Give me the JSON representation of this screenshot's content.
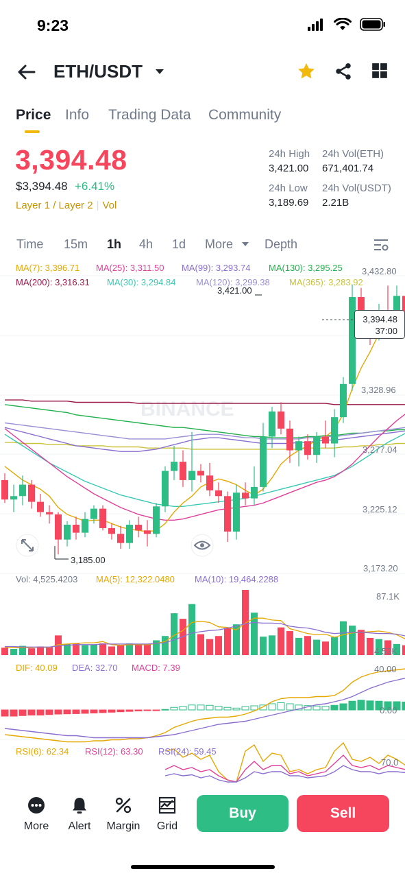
{
  "status_bar": {
    "time": "9:23"
  },
  "header": {
    "pair": "ETH/USDT",
    "favorite_color": "#f0b90b"
  },
  "tabs": [
    {
      "label": "Price",
      "active": true
    },
    {
      "label": "Info",
      "active": false
    },
    {
      "label": "Trading Data",
      "active": false
    },
    {
      "label": "Community",
      "active": false
    }
  ],
  "ticker": {
    "last_price": "3,394.48",
    "usd_price": "$3,394.48",
    "change_pct": "+6.41%",
    "tag1": "Layer 1 / Layer 2",
    "tag2": "Vol",
    "high_label": "24h High",
    "high_value": "3,421.00",
    "vol_eth_label": "24h Vol(ETH)",
    "vol_eth_value": "671,401.74",
    "low_label": "24h Low",
    "low_value": "3,189.69",
    "vol_usdt_label": "24h Vol(USDT)",
    "vol_usdt_value": "2.21B"
  },
  "intervals": {
    "time": "Time",
    "m15": "15m",
    "h1": "1h",
    "h4": "4h",
    "d1": "1d",
    "more": "More",
    "depth": "Depth",
    "active": "1h"
  },
  "moving_averages": [
    {
      "label": "MA(7): 3,396.71",
      "color": "#e6a700"
    },
    {
      "label": "MA(25): 3,311.50",
      "color": "#e0409b"
    },
    {
      "label": "MA(99): 3,293.74",
      "color": "#8a6fd0"
    },
    {
      "label": "MA(130): 3,295.25",
      "color": "#22b14c"
    },
    {
      "label": "MA(200): 3,316.31",
      "color": "#9b1747"
    },
    {
      "label": "MA(30): 3,294.84",
      "color": "#39c9b4"
    },
    {
      "label": "MA(120): 3,299.38",
      "color": "#9b8fd6"
    },
    {
      "label": "MA(365): 3,283.92",
      "color": "#c9c23a"
    }
  ],
  "price_axis": [
    "3,432.80",
    "3,328.96",
    "3,277.04",
    "3,225.12",
    "3,173.20"
  ],
  "current_price_tag": {
    "price": "3,394.48",
    "countdown": "37:00"
  },
  "annotations": {
    "high": "3,421.00",
    "low": "3,185.00"
  },
  "watermark": "BINANCE",
  "volume": {
    "vol_label": "Vol: 4,525.4203",
    "ma5_label": "MA(5): 12,322.0480",
    "ma10_label": "MA(10): 19,464.2288",
    "axis_top": "87.1K",
    "axis_bottom": "4.53K"
  },
  "macd": {
    "dif": "DIF: 40.09",
    "dea": "DEA: 32.70",
    "macd": "MACD: 7.39",
    "axis_top": "40.00",
    "axis_mid": "0.00"
  },
  "rsi": {
    "rsi6": "RSI(6): 62.34",
    "rsi12": "RSI(12): 63.30",
    "rsi24": "RSI(24): 59.45",
    "axis_top": "70.0"
  },
  "bottom_nav": {
    "more": "More",
    "alert": "Alert",
    "margin": "Margin",
    "grid": "Grid",
    "buy": "Buy",
    "sell": "Sell"
  },
  "colors": {
    "up": "#2ebd85",
    "down": "#f6465d",
    "accent": "#f0b90b"
  },
  "chart_data": {
    "type": "candlestick",
    "interval": "1h",
    "ylim": [
      3173.2,
      3432.8
    ],
    "candles": [
      {
        "o": 3250,
        "h": 3256,
        "l": 3230,
        "c": 3233
      },
      {
        "o": 3233,
        "h": 3246,
        "l": 3222,
        "c": 3236
      },
      {
        "o": 3236,
        "h": 3254,
        "l": 3228,
        "c": 3246
      },
      {
        "o": 3246,
        "h": 3250,
        "l": 3225,
        "c": 3231
      },
      {
        "o": 3231,
        "h": 3238,
        "l": 3218,
        "c": 3222
      },
      {
        "o": 3222,
        "h": 3228,
        "l": 3212,
        "c": 3220
      },
      {
        "o": 3220,
        "h": 3222,
        "l": 3185,
        "c": 3198
      },
      {
        "o": 3198,
        "h": 3214,
        "l": 3192,
        "c": 3211
      },
      {
        "o": 3211,
        "h": 3218,
        "l": 3198,
        "c": 3204
      },
      {
        "o": 3204,
        "h": 3222,
        "l": 3200,
        "c": 3216
      },
      {
        "o": 3216,
        "h": 3228,
        "l": 3212,
        "c": 3225
      },
      {
        "o": 3225,
        "h": 3228,
        "l": 3206,
        "c": 3208
      },
      {
        "o": 3208,
        "h": 3212,
        "l": 3198,
        "c": 3203
      },
      {
        "o": 3203,
        "h": 3210,
        "l": 3190,
        "c": 3195
      },
      {
        "o": 3195,
        "h": 3215,
        "l": 3190,
        "c": 3211
      },
      {
        "o": 3211,
        "h": 3218,
        "l": 3200,
        "c": 3206
      },
      {
        "o": 3206,
        "h": 3215,
        "l": 3192,
        "c": 3203
      },
      {
        "o": 3203,
        "h": 3230,
        "l": 3200,
        "c": 3227
      },
      {
        "o": 3227,
        "h": 3262,
        "l": 3222,
        "c": 3258
      },
      {
        "o": 3258,
        "h": 3280,
        "l": 3250,
        "c": 3266
      },
      {
        "o": 3266,
        "h": 3276,
        "l": 3244,
        "c": 3250
      },
      {
        "o": 3250,
        "h": 3292,
        "l": 3240,
        "c": 3258
      },
      {
        "o": 3258,
        "h": 3264,
        "l": 3248,
        "c": 3254
      },
      {
        "o": 3254,
        "h": 3265,
        "l": 3236,
        "c": 3241
      },
      {
        "o": 3241,
        "h": 3248,
        "l": 3230,
        "c": 3236
      },
      {
        "o": 3236,
        "h": 3240,
        "l": 3196,
        "c": 3205
      },
      {
        "o": 3205,
        "h": 3246,
        "l": 3198,
        "c": 3239
      },
      {
        "o": 3239,
        "h": 3248,
        "l": 3228,
        "c": 3234
      },
      {
        "o": 3234,
        "h": 3262,
        "l": 3228,
        "c": 3244
      },
      {
        "o": 3244,
        "h": 3300,
        "l": 3240,
        "c": 3288
      },
      {
        "o": 3288,
        "h": 3314,
        "l": 3278,
        "c": 3310
      },
      {
        "o": 3310,
        "h": 3318,
        "l": 3290,
        "c": 3295
      },
      {
        "o": 3295,
        "h": 3302,
        "l": 3265,
        "c": 3276
      },
      {
        "o": 3276,
        "h": 3288,
        "l": 3262,
        "c": 3284
      },
      {
        "o": 3284,
        "h": 3290,
        "l": 3268,
        "c": 3272
      },
      {
        "o": 3272,
        "h": 3292,
        "l": 3265,
        "c": 3288
      },
      {
        "o": 3288,
        "h": 3302,
        "l": 3278,
        "c": 3282
      },
      {
        "o": 3282,
        "h": 3312,
        "l": 3270,
        "c": 3305
      },
      {
        "o": 3305,
        "h": 3340,
        "l": 3300,
        "c": 3334
      },
      {
        "o": 3334,
        "h": 3421,
        "l": 3328,
        "c": 3410
      },
      {
        "o": 3410,
        "h": 3418,
        "l": 3382,
        "c": 3385
      },
      {
        "o": 3385,
        "h": 3392,
        "l": 3368,
        "c": 3378
      },
      {
        "o": 3378,
        "h": 3404,
        "l": 3372,
        "c": 3398
      },
      {
        "o": 3398,
        "h": 3420,
        "l": 3380,
        "c": 3390
      },
      {
        "o": 3390,
        "h": 3420,
        "l": 3386,
        "c": 3411
      },
      {
        "o": 3411,
        "h": 3414,
        "l": 3388,
        "c": 3394
      },
      {
        "o": 3394,
        "h": 3414,
        "l": 3380,
        "c": 3399
      },
      {
        "o": 3399,
        "h": 3412,
        "l": 3388,
        "c": 3394
      }
    ],
    "ma7": [
      3262,
      3256,
      3250,
      3246,
      3242,
      3236,
      3226,
      3220,
      3217,
      3214,
      3215,
      3215,
      3212,
      3209,
      3207,
      3206,
      3205,
      3206,
      3212,
      3222,
      3230,
      3236,
      3244,
      3248,
      3251,
      3249,
      3246,
      3241,
      3237,
      3242,
      3252,
      3264,
      3271,
      3276,
      3280,
      3285,
      3288,
      3294,
      3308,
      3330,
      3348,
      3362,
      3378,
      3386,
      3392,
      3396,
      3397,
      3396
    ],
    "ma25": [
      3295,
      3289,
      3283,
      3277,
      3271,
      3265,
      3259,
      3253,
      3248,
      3243,
      3238,
      3234,
      3230,
      3226,
      3223,
      3220,
      3218,
      3216,
      3215,
      3215,
      3216,
      3218,
      3220,
      3222,
      3224,
      3225,
      3226,
      3227,
      3228,
      3230,
      3233,
      3236,
      3239,
      3242,
      3245,
      3248,
      3250,
      3253,
      3258,
      3264,
      3272,
      3280,
      3288,
      3295,
      3302,
      3308,
      3311,
      3312
    ],
    "ma30": [
      3290,
      3285,
      3280,
      3275,
      3270,
      3265,
      3261,
      3257,
      3253,
      3249,
      3246,
      3243,
      3240,
      3237,
      3235,
      3233,
      3231,
      3229,
      3228,
      3227,
      3227,
      3228,
      3229,
      3230,
      3231,
      3232,
      3233,
      3234,
      3236,
      3238,
      3240,
      3242,
      3244,
      3246,
      3248,
      3250,
      3252,
      3254,
      3258,
      3262,
      3267,
      3272,
      3278,
      3283,
      3287,
      3291,
      3294,
      3295
    ],
    "ma99": [
      3296,
      3294,
      3292,
      3290,
      3288,
      3286,
      3284,
      3282,
      3280,
      3279,
      3278,
      3277,
      3276,
      3275,
      3275,
      3275,
      3276,
      3277,
      3279,
      3281,
      3283,
      3285,
      3286,
      3287,
      3287,
      3286,
      3285,
      3284,
      3283,
      3282,
      3282,
      3282,
      3282,
      3283,
      3283,
      3284,
      3285,
      3285,
      3286,
      3287,
      3288,
      3289,
      3290,
      3291,
      3292,
      3293,
      3293,
      3294
    ],
    "ma120": [
      3300,
      3299,
      3298,
      3297,
      3296,
      3295,
      3294,
      3293,
      3292,
      3291,
      3290,
      3289,
      3288,
      3287,
      3286,
      3286,
      3286,
      3286,
      3286,
      3287,
      3288,
      3289,
      3290,
      3290,
      3290,
      3289,
      3288,
      3287,
      3287,
      3286,
      3286,
      3286,
      3286,
      3286,
      3287,
      3287,
      3288,
      3288,
      3289,
      3290,
      3291,
      3292,
      3293,
      3294,
      3295,
      3296,
      3297,
      3298
    ],
    "ma130": [
      3316,
      3315,
      3314,
      3313,
      3312,
      3311,
      3310,
      3309,
      3307,
      3306,
      3305,
      3304,
      3303,
      3302,
      3301,
      3300,
      3299,
      3298,
      3297,
      3296,
      3296,
      3295,
      3294,
      3293,
      3292,
      3291,
      3290,
      3289,
      3288,
      3288,
      3287,
      3287,
      3287,
      3287,
      3288,
      3288,
      3289,
      3289,
      3290,
      3291,
      3291,
      3292,
      3293,
      3293,
      3294,
      3294,
      3295,
      3295
    ],
    "ma200": [
      3320,
      3320,
      3320,
      3319,
      3319,
      3319,
      3319,
      3319,
      3318,
      3318,
      3318,
      3318,
      3318,
      3318,
      3318,
      3317,
      3317,
      3317,
      3317,
      3317,
      3317,
      3317,
      3317,
      3317,
      3317,
      3317,
      3317,
      3317,
      3317,
      3317,
      3317,
      3317,
      3317,
      3317,
      3317,
      3317,
      3317,
      3316,
      3316,
      3316,
      3316,
      3316,
      3316,
      3316,
      3316,
      3316,
      3316,
      3316
    ],
    "ma365": [
      3283,
      3283,
      3282,
      3282,
      3282,
      3281,
      3281,
      3281,
      3280,
      3280,
      3280,
      3280,
      3279,
      3279,
      3279,
      3279,
      3278,
      3278,
      3278,
      3278,
      3278,
      3277,
      3277,
      3277,
      3277,
      3277,
      3277,
      3277,
      3277,
      3277,
      3277,
      3277,
      3277,
      3277,
      3278,
      3278,
      3278,
      3278,
      3279,
      3279,
      3280,
      3280,
      3281,
      3281,
      3282,
      3282,
      3283,
      3284
    ],
    "volume": [
      1.2,
      1.0,
      1.5,
      1.1,
      1.4,
      1.3,
      3.2,
      1.8,
      1.9,
      1.6,
      1.7,
      1.9,
      1.4,
      1.6,
      1.9,
      1.7,
      1.8,
      2.4,
      3.1,
      6.8,
      5.9,
      8.3,
      3.4,
      2.6,
      3.1,
      4.4,
      5.0,
      10.6,
      6.9,
      3.0,
      3.2,
      4.5,
      3.9,
      2.8,
      3.1,
      2.5,
      2.2,
      2.9,
      5.5,
      4.8,
      4.1,
      2.8,
      2.6,
      2.4,
      1.8,
      1.6,
      1.2,
      0.6
    ],
    "vol_ma5": [
      1.3,
      1.2,
      1.2,
      1.2,
      1.3,
      1.2,
      1.7,
      1.8,
      1.9,
      2.0,
      2.0,
      2.2,
      1.7,
      1.6,
      1.7,
      1.7,
      1.7,
      1.9,
      2.2,
      3.2,
      4.0,
      5.3,
      5.5,
      5.3,
      4.6,
      4.5,
      4.1,
      5.2,
      6.0,
      6.0,
      5.7,
      5.6,
      4.3,
      3.9,
      3.5,
      3.3,
      3.4,
      2.9,
      3.3,
      3.6,
      3.7,
      3.8,
      3.9,
      3.7,
      3.3,
      2.6,
      2.1,
      1.7
    ],
    "vol_ma10": [
      1.4,
      1.4,
      1.3,
      1.3,
      1.3,
      1.3,
      1.5,
      1.6,
      1.7,
      1.7,
      1.7,
      1.8,
      1.8,
      1.8,
      1.8,
      1.8,
      1.8,
      1.9,
      2.0,
      2.5,
      3.0,
      3.6,
      3.8,
      4.0,
      4.1,
      4.4,
      4.7,
      5.1,
      5.3,
      5.2,
      5.2,
      5.1,
      4.7,
      4.5,
      4.4,
      4.1,
      3.7,
      3.5,
      3.6,
      3.7,
      3.7,
      3.6,
      3.5,
      3.5,
      3.4,
      3.1,
      2.8,
      2.4
    ],
    "macd_hist": [
      -6,
      -6,
      -5.5,
      -5,
      -5,
      -4.5,
      -4,
      -3.8,
      -3.6,
      -3.3,
      -3,
      -2.6,
      -2.2,
      -1.8,
      -1.4,
      -1,
      -0.6,
      -0.2,
      0.5,
      2.5,
      3.5,
      4.8,
      4.8,
      4.5,
      3.5,
      2.5,
      1.8,
      3.2,
      4,
      4.8,
      6,
      7,
      6,
      4.8,
      4.2,
      3.8,
      3.5,
      4.5,
      6,
      8.5,
      9.5,
      8.8,
      8.5,
      8,
      8,
      7.7,
      7.5,
      7.39
    ],
    "macd_dif": [
      -24,
      -25,
      -26,
      -27,
      -28,
      -29,
      -30,
      -31,
      -31,
      -31,
      -30,
      -30,
      -29,
      -29,
      -28,
      -28,
      -27,
      -25,
      -22,
      -17,
      -14,
      -11,
      -9,
      -8,
      -7,
      -7,
      -6,
      -4,
      -1,
      3,
      8,
      11,
      12,
      12,
      12,
      13,
      13,
      14,
      19,
      27,
      32,
      35,
      37,
      38,
      39,
      40,
      40.5,
      40.09
    ],
    "macd_dea": [
      -18,
      -19,
      -20,
      -21,
      -22,
      -23,
      -24,
      -25,
      -25,
      -26,
      -27,
      -27,
      -27,
      -27,
      -27,
      -27,
      -27,
      -26,
      -25,
      -24,
      -22,
      -20,
      -18,
      -16,
      -14,
      -13,
      -12,
      -11,
      -9,
      -7,
      -5,
      -3,
      -1,
      1,
      3,
      5,
      6,
      8,
      10,
      13,
      17,
      21,
      24,
      27,
      29,
      31,
      32,
      32.7
    ],
    "rsi6": [
      null,
      null,
      null,
      null,
      null,
      null,
      null,
      null,
      null,
      null,
      null,
      null,
      null,
      null,
      null,
      null,
      null,
      null,
      80,
      82,
      74,
      78,
      72,
      76,
      60,
      52,
      50,
      80,
      86,
      70,
      78,
      76,
      60,
      62,
      58,
      62,
      64,
      80,
      88,
      72,
      70,
      74,
      68,
      76,
      72,
      66,
      62,
      62.34
    ],
    "rsi12": [
      null,
      null,
      null,
      null,
      null,
      null,
      null,
      null,
      null,
      null,
      null,
      null,
      null,
      null,
      null,
      null,
      null,
      null,
      62,
      66,
      62,
      64,
      60,
      62,
      56,
      52,
      50,
      62,
      70,
      62,
      66,
      66,
      58,
      60,
      56,
      58,
      60,
      68,
      76,
      66,
      64,
      66,
      62,
      66,
      64,
      62,
      62,
      63.3
    ],
    "rsi24": [
      null,
      null,
      null,
      null,
      null,
      null,
      null,
      null,
      null,
      null,
      null,
      null,
      null,
      null,
      null,
      null,
      null,
      null,
      56,
      58,
      56,
      57,
      54,
      56,
      52,
      50,
      50,
      54,
      60,
      58,
      60,
      60,
      56,
      56,
      54,
      55,
      56,
      60,
      66,
      62,
      60,
      60,
      58,
      60,
      60,
      59,
      59,
      59.45
    ]
  }
}
